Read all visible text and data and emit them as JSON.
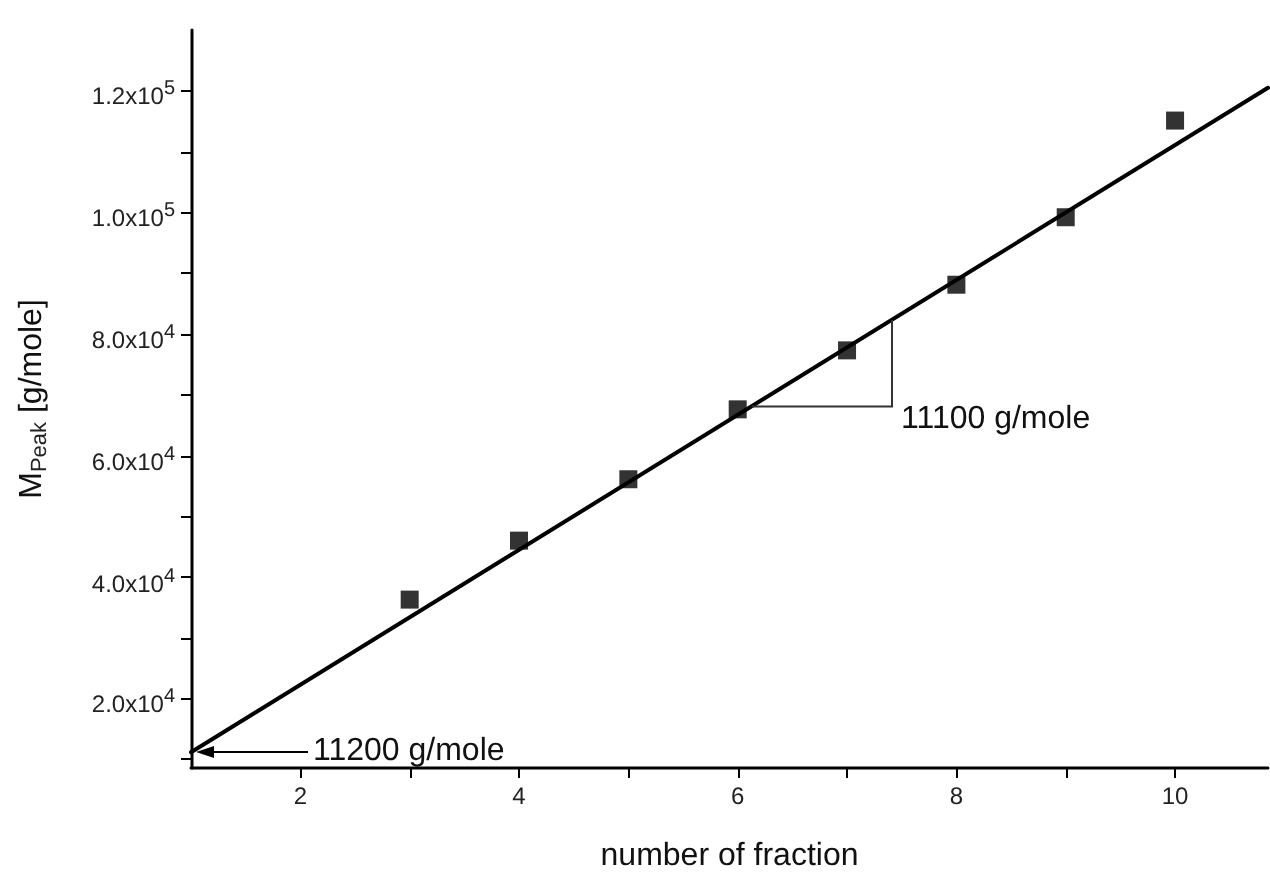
{
  "chart_data": {
    "type": "scatter",
    "xlabel": "number of fraction",
    "ylabel": "M$_{Peak}$ [g/mole]",
    "xlim": [
      1,
      10.85
    ],
    "xticks": [
      2,
      {
        "value": 3,
        "label": null
      },
      4,
      {
        "value": 5,
        "label": null
      },
      6,
      {
        "value": 7,
        "label": null
      },
      8,
      {
        "value": 9,
        "label": null
      },
      10
    ],
    "ylim": [
      8600,
      130000
    ],
    "yticks": [
      {
        "value": 10000,
        "label": null
      },
      {
        "value": 20000,
        "label": "2.0x10$^{4}$"
      },
      {
        "value": 30000,
        "label": null
      },
      {
        "value": 40000,
        "label": "4.0x10$^{4}$"
      },
      {
        "value": 50000,
        "label": null
      },
      {
        "value": 60000,
        "label": "6.0x10$^{4}$"
      },
      {
        "value": 70000,
        "label": null
      },
      {
        "value": 80000,
        "label": "8.0x10$^{4}$"
      },
      {
        "value": 90000,
        "label": null
      },
      {
        "value": 100000,
        "label": "1.0x10$^{5}$"
      },
      {
        "value": 110000,
        "label": null
      },
      {
        "value": 120000,
        "label": "1.2x10$^{5}$"
      }
    ],
    "x": [
      3,
      4,
      5,
      6,
      7,
      8,
      9,
      10
    ],
    "series": [
      {
        "color": "#000000",
        "marker": "square",
        "values": [
          36300,
          46000,
          56100,
          67600,
          77300,
          88100,
          99200,
          115100
        ]
      },
      {
        "type": "line",
        "color": "#000000",
        "marker": "none",
        "line_style": "solid",
        "x": [
          1,
          10.85
        ],
        "values": [
          11200,
          120500
        ]
      }
    ],
    "annotations": [
      "11200 g/mole",
      "11100 g/mole"
    ],
    "grid": false
  }
}
